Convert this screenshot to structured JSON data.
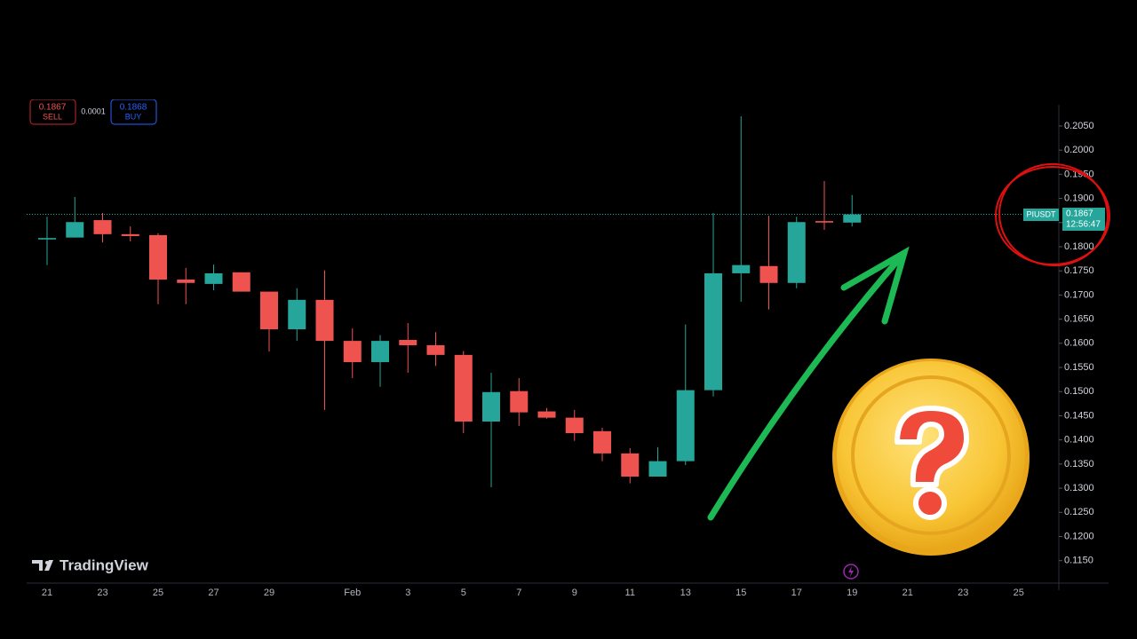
{
  "chart_data": {
    "type": "candlestick",
    "symbol": "PIUSDT",
    "countdown": "12:56:47",
    "last_price": 0.1867,
    "sell_price": 0.1867,
    "sell_label": "SELL",
    "spread": 0.0001,
    "buy_price": 0.1868,
    "buy_label": "BUY",
    "brand": "TradingView",
    "up_color": "#26a69a",
    "down_color": "#ef5350",
    "categories": [
      "21",
      null,
      "23",
      null,
      "25",
      null,
      "27",
      null,
      "29",
      null,
      null,
      "Feb",
      null,
      "3",
      null,
      "5",
      null,
      "7",
      null,
      "9",
      null,
      "11",
      null,
      "13",
      null,
      "15",
      null,
      "17",
      null,
      "19",
      null,
      "21",
      null,
      "23",
      null,
      "25"
    ],
    "open": [
      0.1815,
      0.1819,
      0.1855,
      0.1826,
      0.1824,
      0.1732,
      0.1723,
      0.1747,
      0.1707,
      0.1629,
      0.169,
      0.1605,
      0.1561,
      0.1607,
      0.1596,
      0.1576,
      0.1438,
      0.1501,
      0.1459,
      0.1446,
      0.1418,
      0.1372,
      0.1324,
      0.1356,
      0.1503,
      0.1745,
      0.176,
      0.1725,
      0.1853,
      0.185,
      null,
      null,
      null,
      null,
      null,
      null
    ],
    "high": [
      0.1862,
      0.1903,
      0.187,
      0.1842,
      0.1828,
      0.1756,
      0.1763,
      0.1747,
      0.1707,
      0.1714,
      0.1751,
      0.1631,
      0.1617,
      0.1642,
      0.1623,
      0.1584,
      0.1539,
      0.1528,
      0.1466,
      0.1462,
      0.1425,
      0.1383,
      0.1385,
      0.1639,
      0.187,
      0.207,
      0.1864,
      0.1862,
      0.1936,
      0.1907,
      null,
      null,
      null,
      null,
      null,
      null
    ],
    "low": [
      0.1762,
      0.1819,
      0.1809,
      0.1811,
      0.1681,
      0.1681,
      0.171,
      0.1707,
      0.1583,
      0.1605,
      0.1462,
      0.1528,
      0.151,
      0.1539,
      0.1553,
      0.1414,
      0.1302,
      0.1429,
      0.1444,
      0.1398,
      0.1356,
      0.131,
      0.1324,
      0.1348,
      0.149,
      0.1686,
      0.167,
      0.1714,
      0.1835,
      0.1842,
      null,
      null,
      null,
      null,
      null,
      null
    ],
    "close": [
      0.1818,
      0.1851,
      0.1826,
      0.1822,
      0.1732,
      0.1725,
      0.1745,
      0.1707,
      0.1629,
      0.169,
      0.1605,
      0.1561,
      0.1605,
      0.1596,
      0.1576,
      0.1438,
      0.1499,
      0.1457,
      0.1446,
      0.1414,
      0.1372,
      0.1324,
      0.1356,
      0.1503,
      0.1745,
      0.1762,
      0.1725,
      0.1851,
      0.185,
      0.1867,
      null,
      null,
      null,
      null,
      null,
      null
    ],
    "ylim": [
      0.1098,
      0.2094
    ],
    "yticks": [
      {
        "value": 0.115,
        "label": "0.1150"
      },
      {
        "value": 0.12,
        "label": "0.1200"
      },
      {
        "value": 0.125,
        "label": "0.1250"
      },
      {
        "value": 0.13,
        "label": "0.1300"
      },
      {
        "value": 0.135,
        "label": "0.1350"
      },
      {
        "value": 0.14,
        "label": "0.1400"
      },
      {
        "value": 0.145,
        "label": "0.1450"
      },
      {
        "value": 0.15,
        "label": "0.1500"
      },
      {
        "value": 0.155,
        "label": "0.1550"
      },
      {
        "value": 0.16,
        "label": "0.1600"
      },
      {
        "value": 0.165,
        "label": "0.1650"
      },
      {
        "value": 0.17,
        "label": "0.1700"
      },
      {
        "value": 0.175,
        "label": "0.1750"
      },
      {
        "value": 0.18,
        "label": "0.1800"
      },
      {
        "value": 0.185,
        "label": "0.1850"
      },
      {
        "value": 0.19,
        "label": "0.1900"
      },
      {
        "value": 0.195,
        "label": "0.1950"
      },
      {
        "value": 0.2,
        "label": "0.2000"
      },
      {
        "value": 0.205,
        "label": "0.2050"
      }
    ]
  }
}
